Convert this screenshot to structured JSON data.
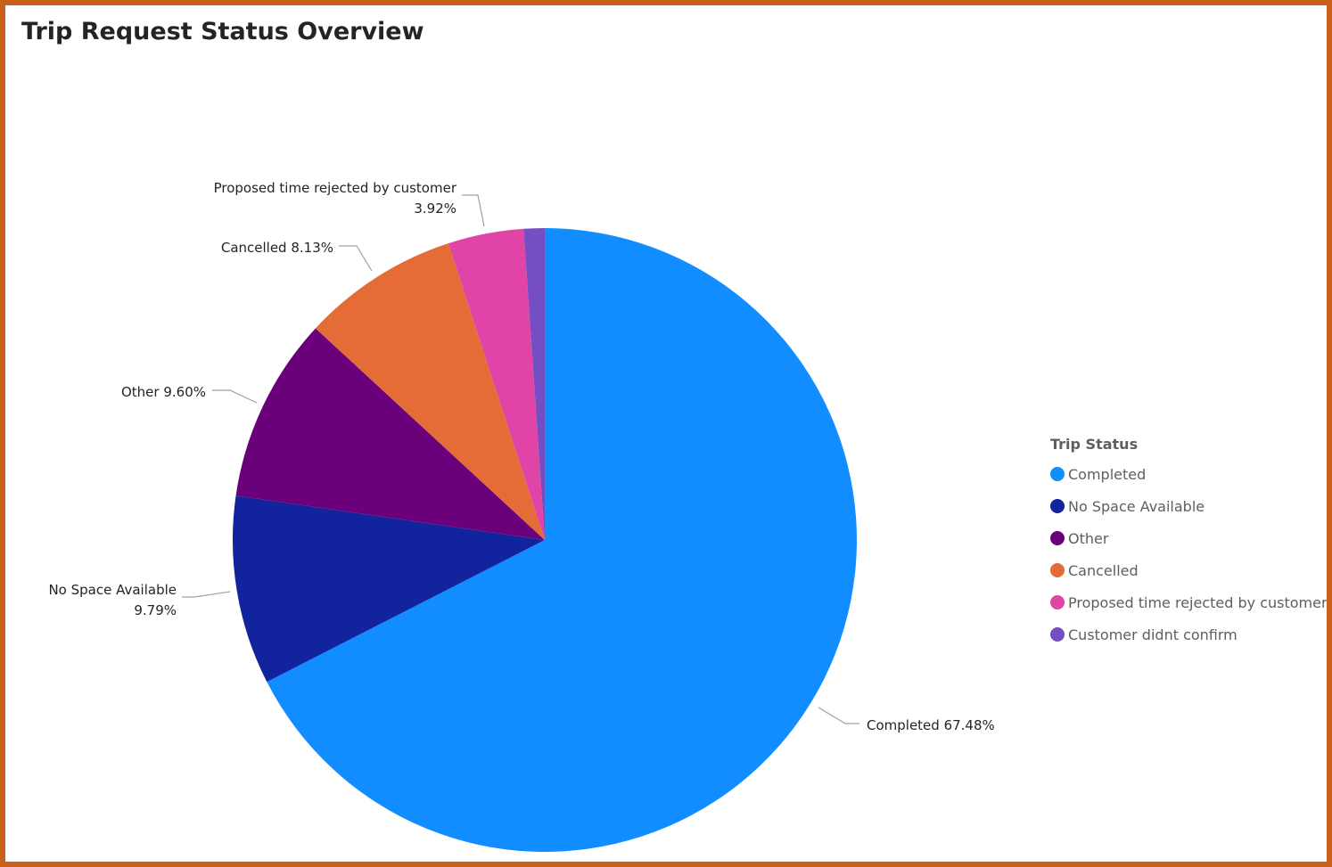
{
  "page": {
    "title": "Trip Request Status Overview"
  },
  "legend": {
    "title": "Trip Status"
  },
  "chart_data": {
    "type": "pie",
    "title": "Trip Request Status Overview",
    "legend_title": "Trip Status",
    "legend_position": "right",
    "start_angle": "12 o'clock, clockwise",
    "slices": [
      {
        "name": "Completed",
        "value": 67.48,
        "color": "#118dff",
        "label": "Completed 67.48%"
      },
      {
        "name": "No Space Available",
        "value": 9.79,
        "color": "#12239e",
        "label": "No Space Available 9.79%"
      },
      {
        "name": "Other",
        "value": 9.6,
        "color": "#6b007b",
        "label": "Other 9.60%"
      },
      {
        "name": "Cancelled",
        "value": 8.13,
        "color": "#e66c37",
        "label": "Cancelled 8.13%"
      },
      {
        "name": "Proposed time rejected by customer",
        "value": 3.92,
        "color": "#e044a7",
        "label": "Proposed time rejected by customer 3.92%"
      },
      {
        "name": "Customer didnt confirm",
        "value": 1.08,
        "color": "#744ec2",
        "label": ""
      }
    ]
  }
}
